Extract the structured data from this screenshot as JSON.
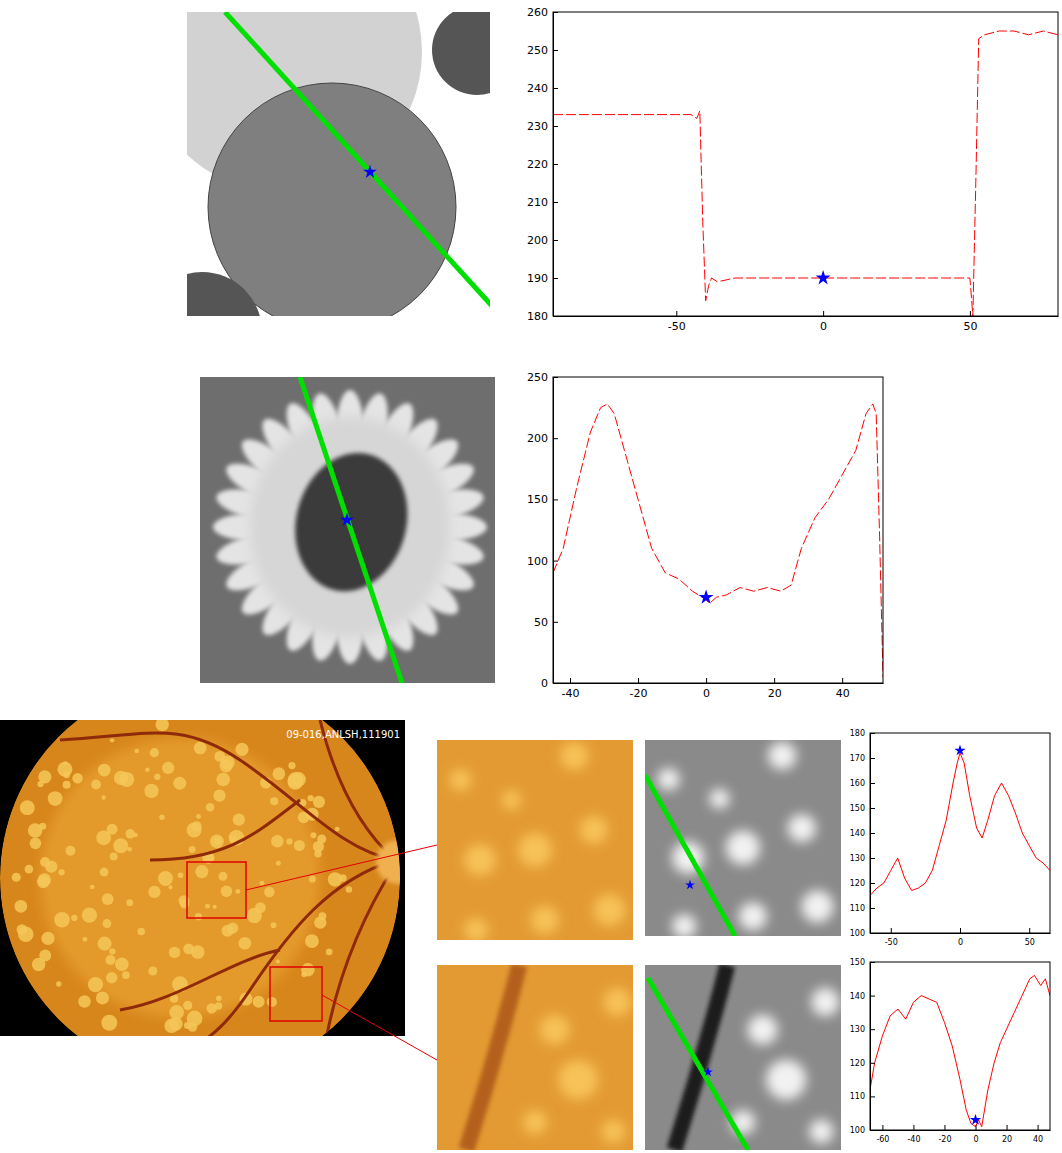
{
  "chart_data": [
    {
      "type": "line",
      "xlim": [
        -92,
        80
      ],
      "xticks": [
        -50,
        0,
        50
      ],
      "ylim": [
        180,
        260
      ],
      "yticks": [
        180,
        190,
        200,
        210,
        220,
        230,
        240,
        250,
        260
      ],
      "series": [
        {
          "type": "line",
          "color": "#ff0000",
          "line_style": "dashed",
          "x": [
            -92,
            -80,
            -70,
            -60,
            -50,
            -45,
            -43,
            -42,
            -41,
            -40,
            -39,
            -38,
            -36,
            -30,
            -20,
            -10,
            0,
            10,
            20,
            30,
            40,
            48,
            50,
            51,
            52,
            53,
            55,
            60,
            65,
            70,
            75,
            80
          ],
          "values": [
            233,
            233,
            233,
            233,
            233,
            233,
            232,
            234,
            205,
            184,
            188,
            190,
            189,
            190,
            190,
            190,
            190,
            190,
            190,
            190,
            190,
            190,
            190,
            180,
            215,
            253,
            254,
            255,
            255,
            254,
            255,
            254
          ]
        },
        {
          "type": "scatter",
          "color": "#0000ff",
          "marker": "star",
          "x": [
            0
          ],
          "values": [
            190
          ]
        }
      ]
    },
    {
      "type": "line",
      "xlim": [
        -45,
        52
      ],
      "xticks": [
        -40,
        -20,
        0,
        20,
        40
      ],
      "ylim": [
        0,
        250
      ],
      "yticks": [
        0,
        50,
        100,
        150,
        200,
        250
      ],
      "series": [
        {
          "type": "line",
          "color": "#ff0000",
          "line_style": "dashed",
          "x": [
            -45,
            -42,
            -38,
            -34,
            -31,
            -29,
            -27,
            -24,
            -20,
            -16,
            -12,
            -8,
            -4,
            0,
            1,
            3,
            6,
            10,
            14,
            18,
            22,
            25,
            28,
            32,
            36,
            40,
            44,
            47,
            49,
            50,
            51,
            52
          ],
          "values": [
            90,
            110,
            160,
            205,
            225,
            228,
            220,
            190,
            150,
            110,
            90,
            85,
            75,
            68,
            65,
            70,
            72,
            78,
            75,
            78,
            75,
            80,
            110,
            135,
            150,
            170,
            190,
            220,
            228,
            220,
            120,
            5
          ]
        },
        {
          "type": "scatter",
          "color": "#0000ff",
          "marker": "star",
          "x": [
            0
          ],
          "values": [
            70
          ]
        }
      ]
    },
    {
      "type": "line",
      "xlim": [
        -65,
        65
      ],
      "xticks": [
        -50,
        0,
        50
      ],
      "ylim": [
        100,
        180
      ],
      "yticks": [
        100,
        110,
        120,
        130,
        140,
        150,
        160,
        170,
        180
      ],
      "series": [
        {
          "type": "line",
          "color": "#ff0000",
          "line_style": "solid",
          "x": [
            -65,
            -60,
            -55,
            -50,
            -45,
            -40,
            -35,
            -30,
            -25,
            -20,
            -15,
            -10,
            -5,
            -2,
            0,
            3,
            7,
            12,
            16,
            20,
            25,
            30,
            35,
            40,
            45,
            50,
            55,
            60,
            65
          ],
          "values": [
            115,
            118,
            120,
            125,
            130,
            122,
            117,
            118,
            120,
            125,
            135,
            145,
            160,
            168,
            172,
            168,
            155,
            142,
            138,
            145,
            155,
            160,
            155,
            148,
            140,
            135,
            130,
            128,
            125
          ]
        },
        {
          "type": "scatter",
          "color": "#0000ff",
          "marker": "star",
          "x": [
            0
          ],
          "values": [
            173
          ]
        }
      ]
    },
    {
      "type": "line",
      "xlim": [
        -68,
        48
      ],
      "xticks": [
        -60,
        -40,
        -20,
        0,
        20,
        40
      ],
      "ylim": [
        100,
        150
      ],
      "yticks": [
        100,
        110,
        120,
        130,
        140,
        150
      ],
      "series": [
        {
          "type": "line",
          "color": "#ff0000",
          "line_style": "solid",
          "x": [
            -68,
            -65,
            -60,
            -55,
            -50,
            -45,
            -40,
            -35,
            -30,
            -25,
            -20,
            -15,
            -10,
            -6,
            -3,
            0,
            2,
            4,
            8,
            12,
            16,
            20,
            25,
            30,
            35,
            38,
            42,
            45,
            48
          ],
          "values": [
            112,
            120,
            128,
            134,
            136,
            133,
            138,
            140,
            139,
            138,
            132,
            125,
            115,
            106,
            102,
            101,
            103,
            101,
            112,
            120,
            126,
            130,
            135,
            140,
            145,
            146,
            143,
            145,
            140
          ]
        },
        {
          "type": "scatter",
          "color": "#0000ff",
          "marker": "star",
          "x": [
            0
          ],
          "values": [
            103
          ]
        }
      ]
    }
  ],
  "images": {
    "fundus_label": "09-016,ANLSH,111901"
  }
}
